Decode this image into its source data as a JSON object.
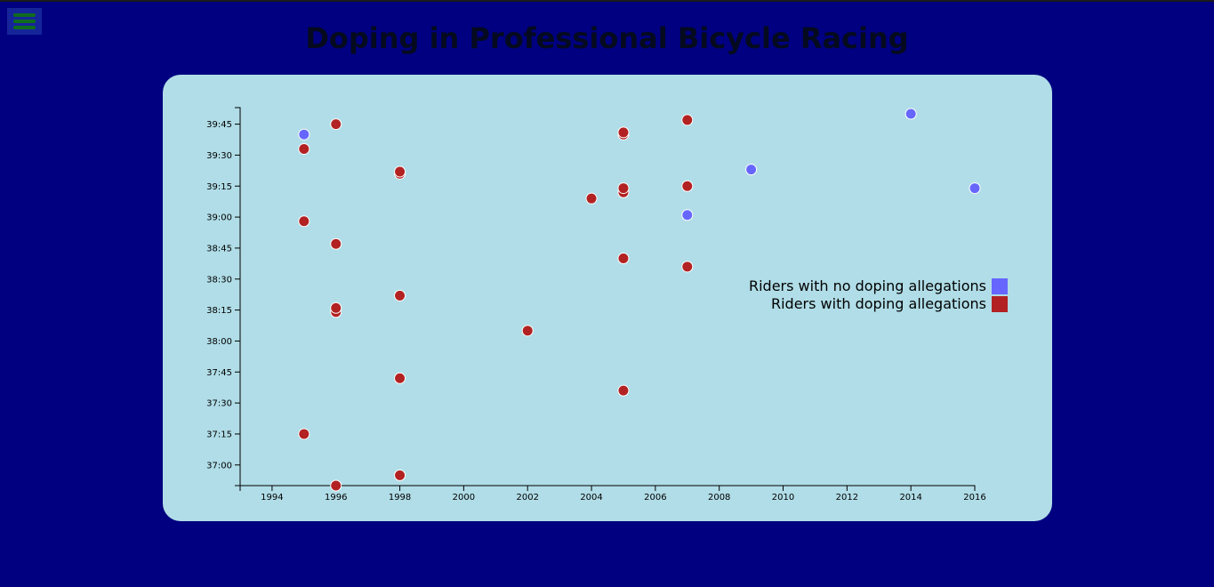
{
  "header": {
    "title": "Doping in Professional Bicycle Racing",
    "menu_icon": "hamburger-icon"
  },
  "colors": {
    "page_background": "#000080",
    "card_background": "#b0dde7",
    "no_doping": "#6666ff",
    "doping": "#b22222",
    "menu_lines": "#0f6b1e"
  },
  "chart_data": {
    "type": "scatter",
    "title": "",
    "xlabel": "",
    "ylabel": "",
    "xlim": [
      1993,
      2016
    ],
    "ylim": [
      "39:53",
      "36:50"
    ],
    "y_reversed": true,
    "x_ticks": [
      "1994",
      "1996",
      "1998",
      "2000",
      "2002",
      "2004",
      "2006",
      "2008",
      "2010",
      "2012",
      "2014",
      "2016"
    ],
    "y_ticks": [
      "39:45",
      "39:30",
      "39:15",
      "39:00",
      "38:45",
      "38:30",
      "38:15",
      "38:00",
      "37:45",
      "37:30",
      "37:15",
      "37:00"
    ],
    "grid": false,
    "legend_position": "right",
    "series": [
      {
        "name": "Riders with no doping allegations",
        "color": "#6666ff",
        "points": [
          {
            "x": 1995,
            "y": "39:40"
          },
          {
            "x": 2007,
            "y": "39:01"
          },
          {
            "x": 2009,
            "y": "39:23"
          },
          {
            "x": 2014,
            "y": "39:50"
          },
          {
            "x": 2016,
            "y": "39:14"
          }
        ]
      },
      {
        "name": "Riders with doping allegations",
        "color": "#b22222",
        "points": [
          {
            "x": 1995,
            "y": "39:33"
          },
          {
            "x": 1995,
            "y": "38:58"
          },
          {
            "x": 1995,
            "y": "37:15"
          },
          {
            "x": 1996,
            "y": "39:45"
          },
          {
            "x": 1996,
            "y": "38:47"
          },
          {
            "x": 1996,
            "y": "38:14"
          },
          {
            "x": 1996,
            "y": "38:16"
          },
          {
            "x": 1996,
            "y": "36:50"
          },
          {
            "x": 1998,
            "y": "39:21"
          },
          {
            "x": 1998,
            "y": "39:22"
          },
          {
            "x": 1998,
            "y": "38:22"
          },
          {
            "x": 1998,
            "y": "37:42"
          },
          {
            "x": 1998,
            "y": "36:55"
          },
          {
            "x": 2002,
            "y": "38:05"
          },
          {
            "x": 2004,
            "y": "39:09"
          },
          {
            "x": 2005,
            "y": "39:40"
          },
          {
            "x": 2005,
            "y": "39:41"
          },
          {
            "x": 2005,
            "y": "39:12"
          },
          {
            "x": 2005,
            "y": "39:14"
          },
          {
            "x": 2005,
            "y": "38:40"
          },
          {
            "x": 2005,
            "y": "37:36"
          },
          {
            "x": 2007,
            "y": "39:47"
          },
          {
            "x": 2007,
            "y": "39:15"
          },
          {
            "x": 2007,
            "y": "38:36"
          }
        ]
      }
    ]
  }
}
